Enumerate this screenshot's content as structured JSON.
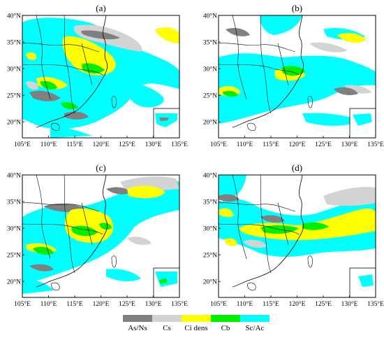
{
  "panels": [
    {
      "label": "(a)",
      "inset": true
    },
    {
      "label": "(b)",
      "inset": true
    },
    {
      "label": "(c)",
      "inset": true
    },
    {
      "label": "(d)",
      "inset": true
    }
  ],
  "axes": {
    "lon_ticks": [
      "105°E",
      "110°E",
      "115°E",
      "120°E",
      "125°E",
      "130°E",
      "135°E"
    ],
    "lat_ticks": [
      "40°N",
      "35°N",
      "30°N",
      "25°N",
      "20°N"
    ]
  },
  "legend": {
    "items": [
      {
        "label": "As/Ns",
        "color": "#808080"
      },
      {
        "label": "Cs",
        "color": "#d3d3d3"
      },
      {
        "label": "Ci dens",
        "color": "#ffff00"
      },
      {
        "label": "Cb",
        "color": "#00ee00"
      },
      {
        "label": "Sc/Ac",
        "color": "#00ffff"
      }
    ]
  },
  "colors": {
    "as_ns": "#808080",
    "cs": "#d3d3d3",
    "ci_dens": "#ffff00",
    "cb": "#00ee00",
    "sc_ac": "#00ffff",
    "background": "#ffffff",
    "boundary": "#000000"
  }
}
